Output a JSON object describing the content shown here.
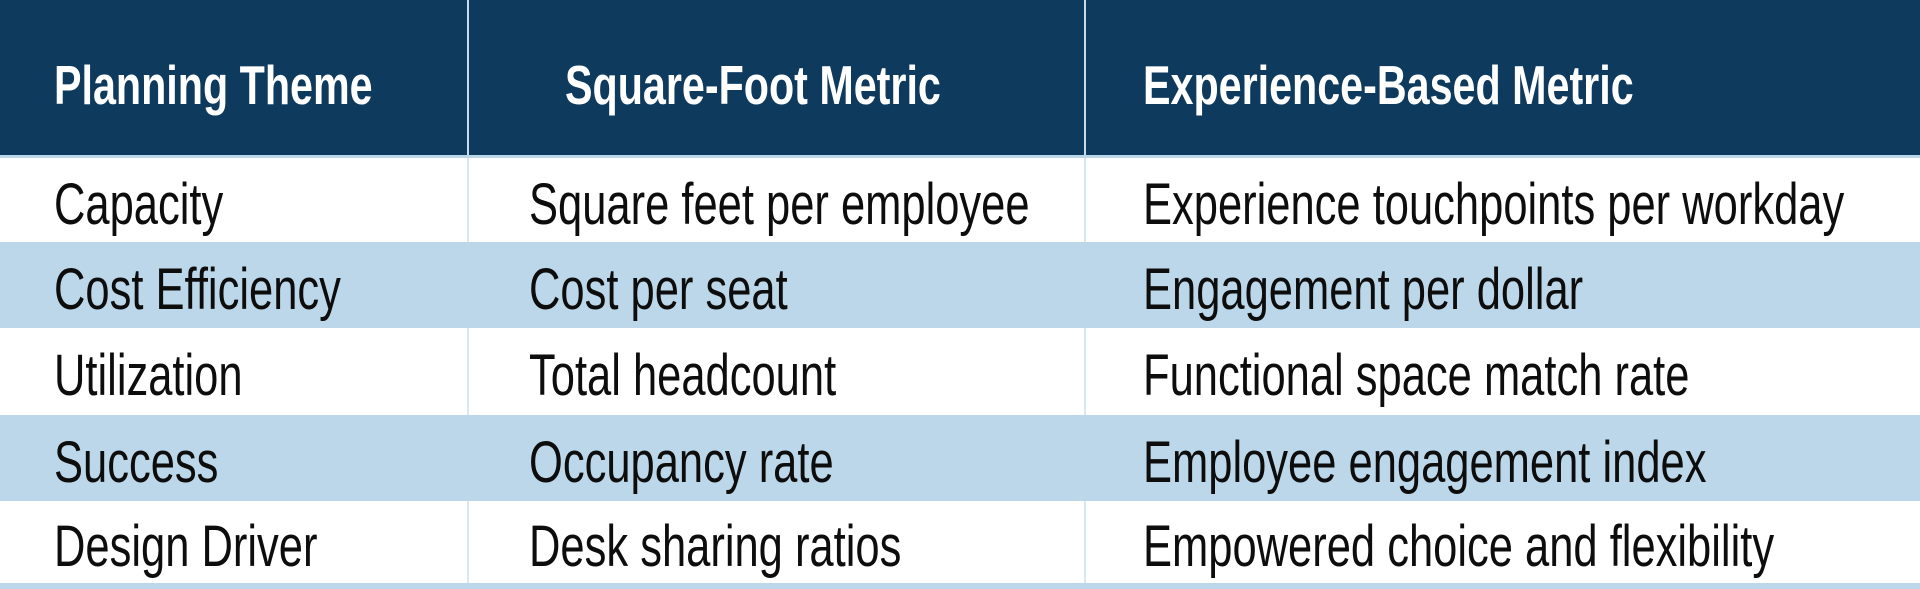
{
  "table": {
    "header": [
      "Planning Theme",
      "Square-Foot Metric",
      "Experience-Based Metric"
    ],
    "rows": [
      [
        "Capacity",
        "Square feet per employee",
        "Experience touchpoints per workday"
      ],
      [
        "Cost Efficiency",
        "Cost per seat",
        "Engagement per dollar"
      ],
      [
        "Utilization",
        "Total headcount",
        "Functional space match rate"
      ],
      [
        "Success",
        "Occupancy rate",
        "Employee engagement index"
      ],
      [
        "Design Driver",
        "Desk sharing ratios",
        "Empowered choice and flexibility"
      ]
    ]
  },
  "colors": {
    "header_bg": "#0E3A5E",
    "header_text": "#FFFFFF",
    "row_alt_bg": "#BCD7E9",
    "row_bg": "#FFFFFF",
    "body_text": "#0D0D0D",
    "grid_line": "#D7E7F3",
    "header_grid_line": "#C9DBE9"
  }
}
